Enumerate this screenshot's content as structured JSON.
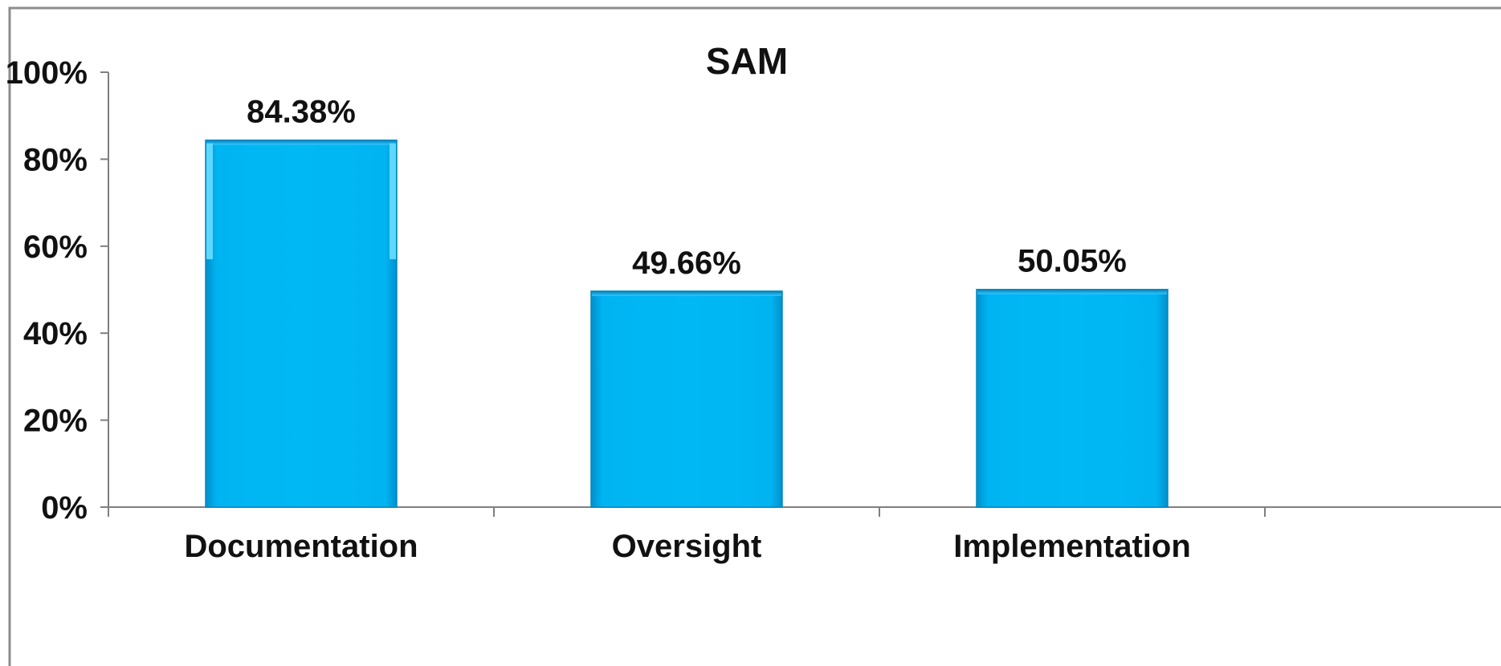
{
  "chart_data": {
    "type": "bar",
    "title": "SAM",
    "categories": [
      "Documentation",
      "Oversight",
      "Implementation"
    ],
    "values": [
      84.38,
      49.66,
      50.05
    ],
    "data_labels": [
      "84.38%",
      "49.66%",
      "50.05%"
    ],
    "xlabel": "",
    "ylabel": "",
    "ylim": [
      0,
      100
    ],
    "yticks": [
      0,
      20,
      40,
      60,
      80,
      100
    ],
    "ytick_labels": [
      "0%",
      "20%",
      "40%",
      "60%",
      "80%",
      "100%"
    ],
    "grid": false,
    "legend": "none",
    "colors": {
      "bar": "#00b0f0",
      "bar_highlight": "#5fd8ff",
      "bar_edge": "#0088c0",
      "axis": "#7f7f7f",
      "text": "#111111",
      "frame": "#8c8c8c"
    }
  }
}
